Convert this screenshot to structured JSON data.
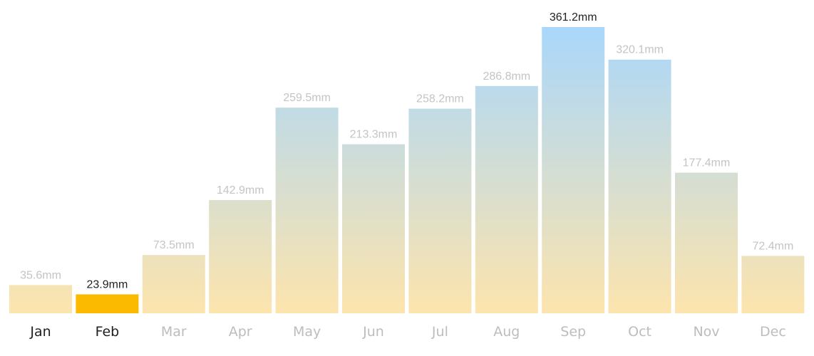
{
  "chart_data": {
    "type": "bar",
    "categories": [
      "Jan",
      "Feb",
      "Mar",
      "Apr",
      "May",
      "Jun",
      "Jul",
      "Aug",
      "Sep",
      "Oct",
      "Nov",
      "Dec"
    ],
    "values": [
      35.6,
      23.9,
      73.5,
      142.9,
      259.5,
      213.3,
      258.2,
      286.8,
      361.2,
      320.1,
      177.4,
      72.4
    ],
    "value_labels": [
      "35.6mm",
      "23.9mm",
      "73.5mm",
      "142.9mm",
      "259.5mm",
      "213.3mm",
      "258.2mm",
      "286.8mm",
      "361.2mm",
      "320.1mm",
      "177.4mm",
      "72.4mm"
    ],
    "unit": "mm",
    "title": "",
    "xlabel": "",
    "ylabel": "",
    "ylim": [
      0,
      361.2
    ],
    "grid": false,
    "highlighted_category": "Feb",
    "emphasized_categories": [
      "Jan",
      "Feb"
    ],
    "emphasized_value_labels": [
      "23.9mm",
      "361.2mm"
    ],
    "colors": {
      "gradient_top": "#a9d7fb",
      "gradient_bottom": "#fde4ad",
      "highlight_bar": "#fbb900",
      "label_muted": "#c4c4c4",
      "label_dark": "#222222",
      "axis_label_muted": "#bdbdbd",
      "axis_label_dark": "#1f1f1f",
      "axis_line": "#f3f3f3"
    }
  }
}
